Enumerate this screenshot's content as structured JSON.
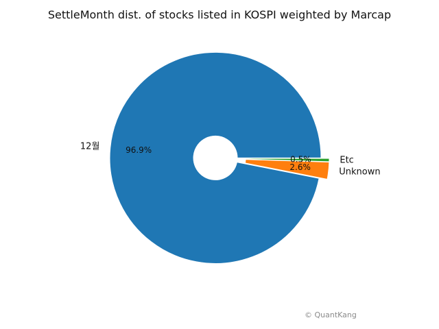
{
  "chart_data": {
    "type": "pie",
    "title": "SettleMonth dist. of stocks listed in KOSPI weighted by Marcap",
    "slices": [
      {
        "label": "12월",
        "pct": 96.9,
        "pct_label": "96.9%",
        "color": "#1f77b4"
      },
      {
        "label": "Unknown",
        "pct": 2.6,
        "pct_label": "2.6%",
        "color": "#ff7f0e"
      },
      {
        "label": "Etc",
        "pct": 0.5,
        "pct_label": "0.5%",
        "color": "#2ca02c"
      }
    ],
    "donut_hole": true,
    "exploded": true
  },
  "watermark": "© QuantKang"
}
